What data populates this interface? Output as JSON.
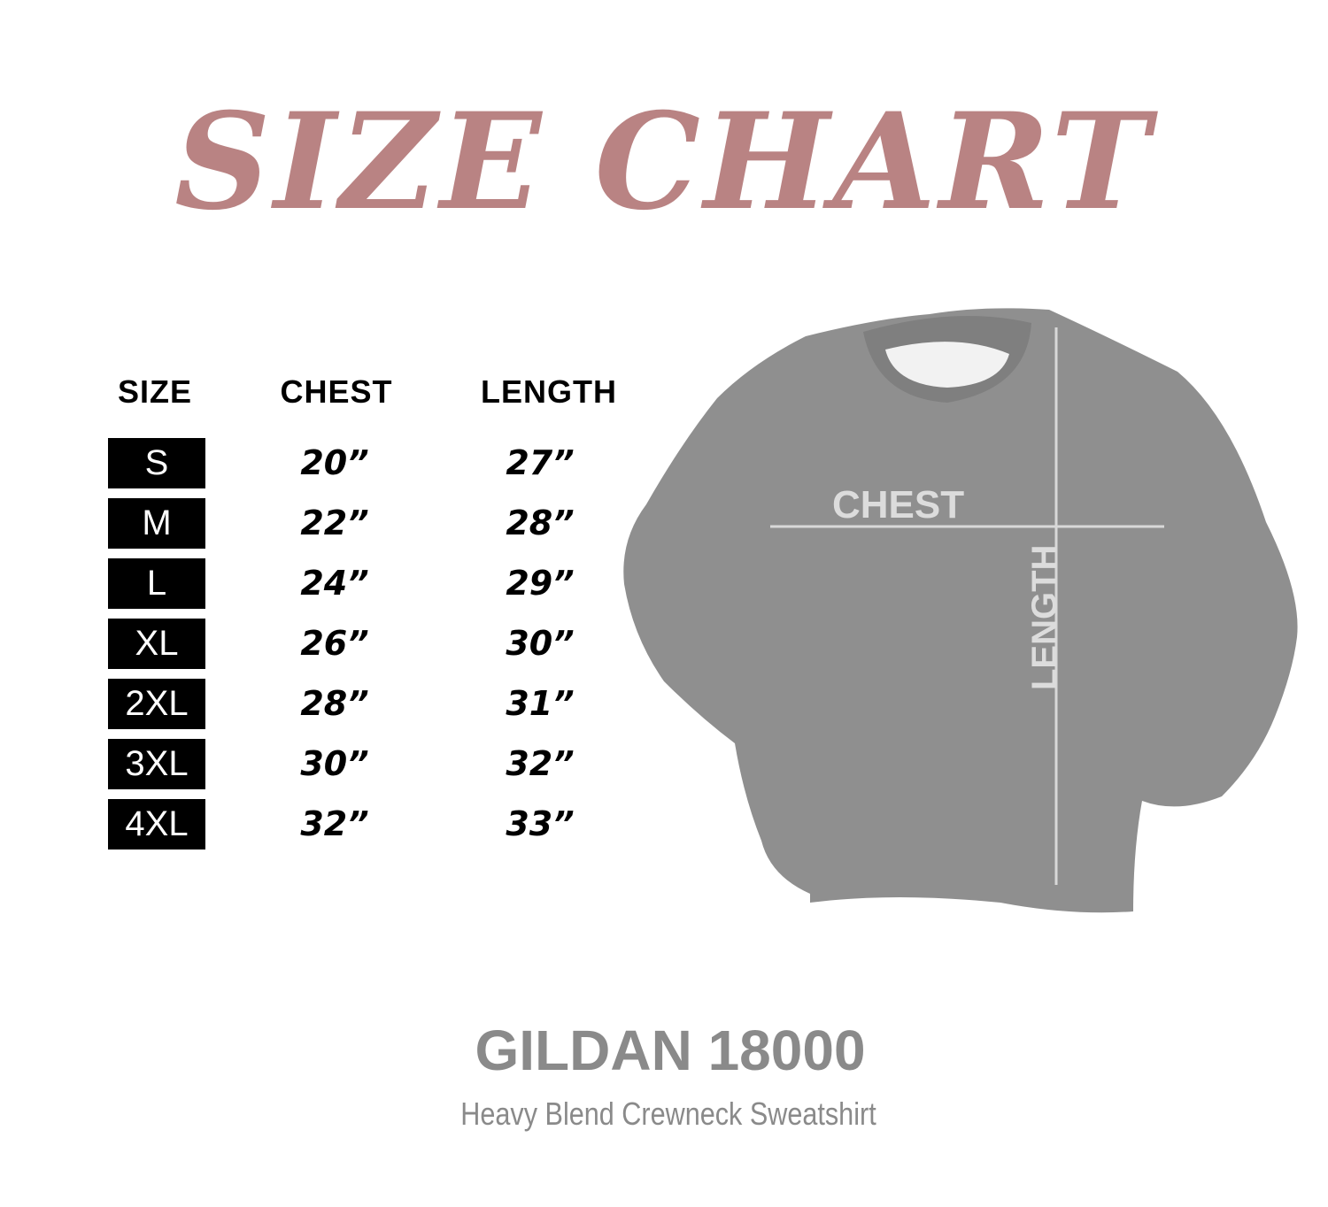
{
  "title": "SIZE CHART",
  "colors": {
    "title": "#b98383",
    "badge": "#000000",
    "brand": "#8a8a8a",
    "garment": "#8f8f8f",
    "measure_lines": "#d8d8d8"
  },
  "table": {
    "headers": {
      "size": "SIZE",
      "chest": "CHEST",
      "length": "LENGTH"
    },
    "rows": [
      {
        "size": "S",
        "chest": "20”",
        "length": "27”"
      },
      {
        "size": "M",
        "chest": "22”",
        "length": "28”"
      },
      {
        "size": "L",
        "chest": "24”",
        "length": "29”"
      },
      {
        "size": "XL",
        "chest": "26”",
        "length": "30”"
      },
      {
        "size": "2XL",
        "chest": "28”",
        "length": "31”"
      },
      {
        "size": "3XL",
        "chest": "30”",
        "length": "32”"
      },
      {
        "size": "4XL",
        "chest": "32”",
        "length": "33”"
      }
    ]
  },
  "garment": {
    "chest_label": "CHEST",
    "length_label": "LENGTH"
  },
  "brand": "GILDAN 18000",
  "subtitle": "Heavy Blend Crewneck Sweatshirt"
}
